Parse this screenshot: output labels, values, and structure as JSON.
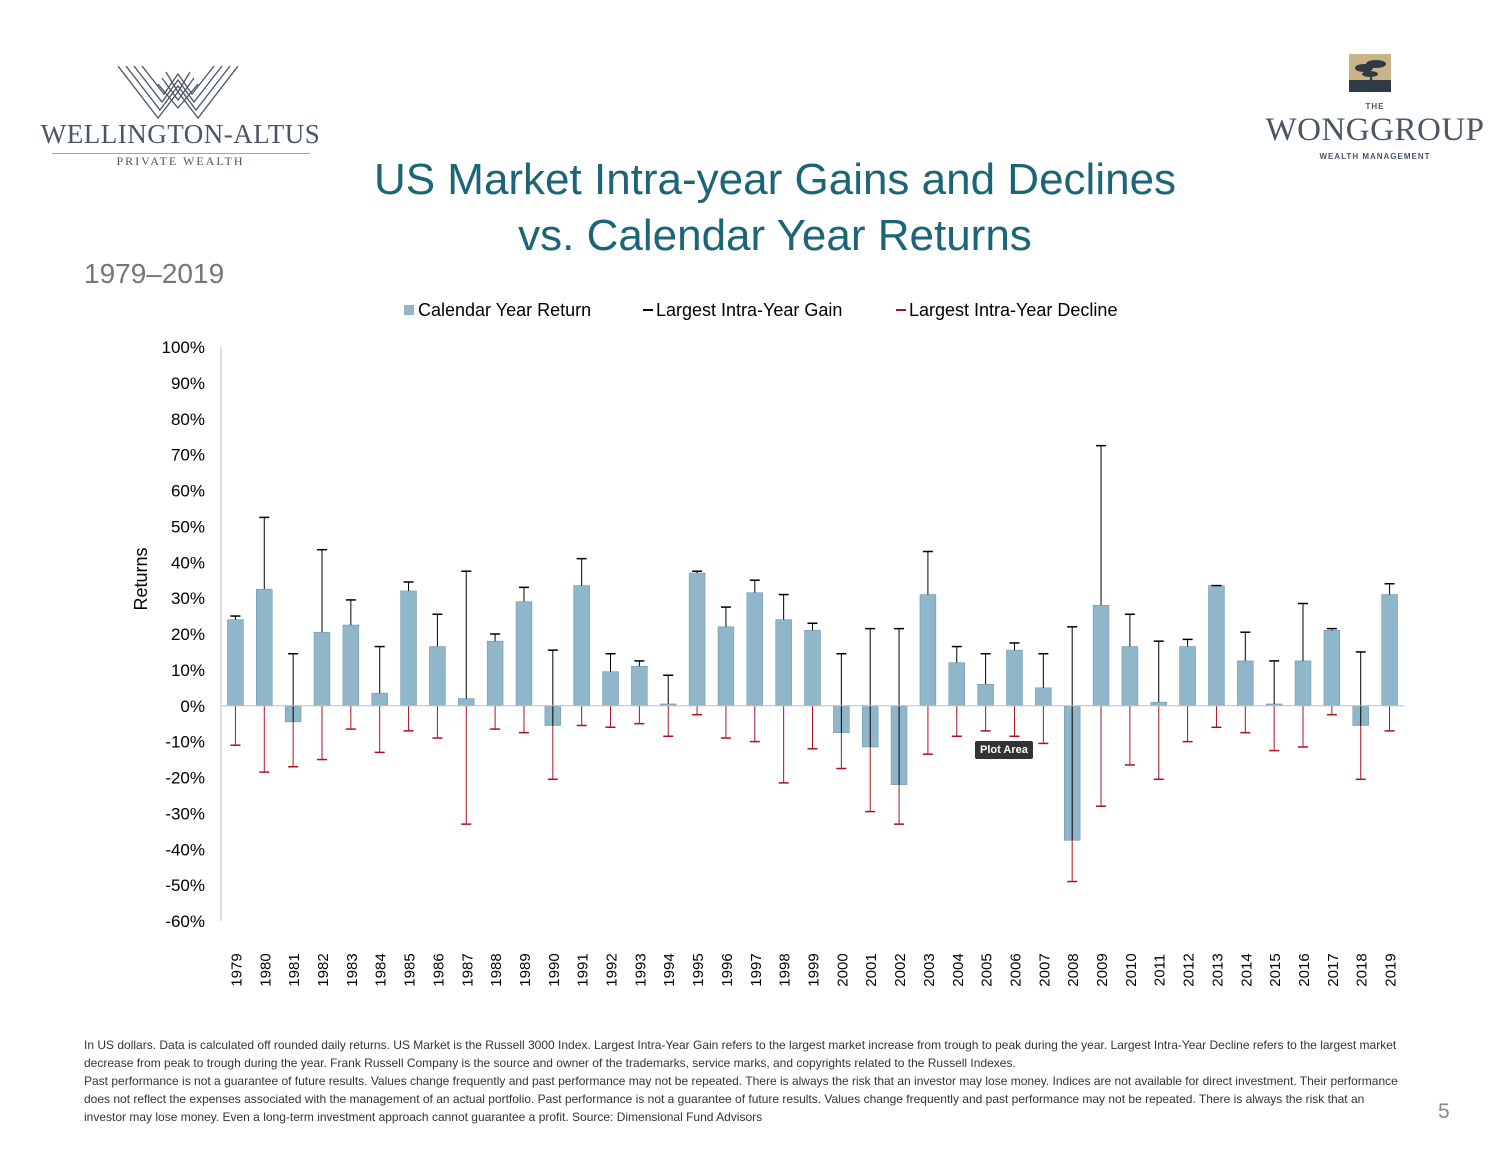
{
  "logos": {
    "left": {
      "name": "WELLINGTON-ALTUS",
      "tagline": "PRIVATE WEALTH"
    },
    "right": {
      "prefix": "THE",
      "name": "WONGGROUP",
      "tagline": "WEALTH MANAGEMENT"
    }
  },
  "title_line1": "US Market Intra-year Gains and Declines",
  "title_line2": "vs. Calendar Year Returns",
  "subtitle": "1979–2019",
  "tooltip": "Plot Area",
  "page_number": "5",
  "footnote": {
    "line1": "In US dollars. Data is calculated off rounded daily returns. US Market is the Russell 3000 Index. Largest Intra-Year Gain refers to the largest market increase from trough to peak during the year. Largest Intra-Year Decline refers to the largest market decrease from peak to trough during the year. Frank Russell Company is the source and owner of the trademarks, service marks, and copyrights related to the Russell Indexes.",
    "line2": "Past performance is not a guarantee of future results. Values change frequently and past performance may not be repeated. There is always the risk that an investor may lose money. Indices are not available for direct investment. Their performance does not reflect the expenses associated with the management of an actual portfolio. Past performance is not a guarantee of future results. Values change frequently and past performance may not be repeated. There is always the risk that an investor may lose money. Even a long-term investment approach cannot guarantee a profit. Source: Dimensional Fund Advisors"
  },
  "colors": {
    "bar": "#8fb6c9",
    "bar_border": "#6e9bb1",
    "gain": "#000000",
    "decline": "#b0101e",
    "title": "#1b6577"
  },
  "chart_data": {
    "type": "bar",
    "ylabel": "Returns",
    "ylim": [
      -60,
      100
    ],
    "yticks": [
      100,
      90,
      80,
      70,
      60,
      50,
      40,
      30,
      20,
      10,
      0,
      -10,
      -20,
      -30,
      -40,
      -50,
      -60
    ],
    "ytick_labels": [
      "100%",
      "90%",
      "80%",
      "70%",
      "60%",
      "50%",
      "40%",
      "30%",
      "20%",
      "10%",
      "0%",
      "-10%",
      "-20%",
      "-30%",
      "-40%",
      "-50%",
      "-60%"
    ],
    "legend": [
      "Calendar Year Return",
      "Largest Intra-Year Gain",
      "Largest Intra-Year Decline"
    ],
    "legend_position": "top-center",
    "categories": [
      "1979",
      "1980",
      "1981",
      "1982",
      "1983",
      "1984",
      "1985",
      "1986",
      "1987",
      "1988",
      "1989",
      "1990",
      "1991",
      "1992",
      "1993",
      "1994",
      "1995",
      "1996",
      "1997",
      "1998",
      "1999",
      "2000",
      "2001",
      "2002",
      "2003",
      "2004",
      "2005",
      "2006",
      "2007",
      "2008",
      "2009",
      "2010",
      "2011",
      "2012",
      "2013",
      "2014",
      "2015",
      "2016",
      "2017",
      "2018",
      "2019"
    ],
    "series": [
      {
        "name": "Calendar Year Return",
        "values": [
          24,
          32.5,
          -4.5,
          20.5,
          22.5,
          3.5,
          32,
          16.5,
          2,
          18,
          29,
          -5.5,
          33.5,
          9.5,
          11,
          0.5,
          37,
          22,
          31.5,
          24,
          21,
          -7.5,
          -11.5,
          -22,
          31,
          12,
          6,
          15.5,
          5,
          -37.5,
          28,
          16.5,
          1,
          16.5,
          33.5,
          12.5,
          0.5,
          12.5,
          21,
          -5.5,
          31
        ]
      },
      {
        "name": "Largest Intra-Year Gain",
        "values": [
          25,
          52.5,
          14.5,
          43.5,
          29.5,
          16.5,
          34.5,
          25.5,
          37.5,
          20,
          33,
          15.5,
          41,
          14.5,
          12.5,
          8.5,
          37.5,
          27.5,
          35,
          31,
          23,
          14.5,
          21.5,
          21.5,
          43,
          16.5,
          14.5,
          17.5,
          14.5,
          22,
          72.5,
          25.5,
          18,
          18.5,
          33.5,
          20.5,
          12.5,
          28.5,
          21.5,
          15,
          34
        ]
      },
      {
        "name": "Largest Intra-Year Decline",
        "values": [
          -11,
          -18.5,
          -17,
          -15,
          -6.5,
          -13,
          -7,
          -9,
          -33,
          -6.5,
          -7.5,
          -20.5,
          -5.5,
          -6,
          -5,
          -8.5,
          -2.5,
          -9,
          -10,
          -21.5,
          -12,
          -17.5,
          -29.5,
          -33,
          -13.5,
          -8.5,
          -7,
          -8.5,
          -10.5,
          -49,
          -28,
          -16.5,
          -20.5,
          -10,
          -6,
          -7.5,
          -12.5,
          -11.5,
          -2.5,
          -20.5,
          -7
        ]
      }
    ]
  }
}
